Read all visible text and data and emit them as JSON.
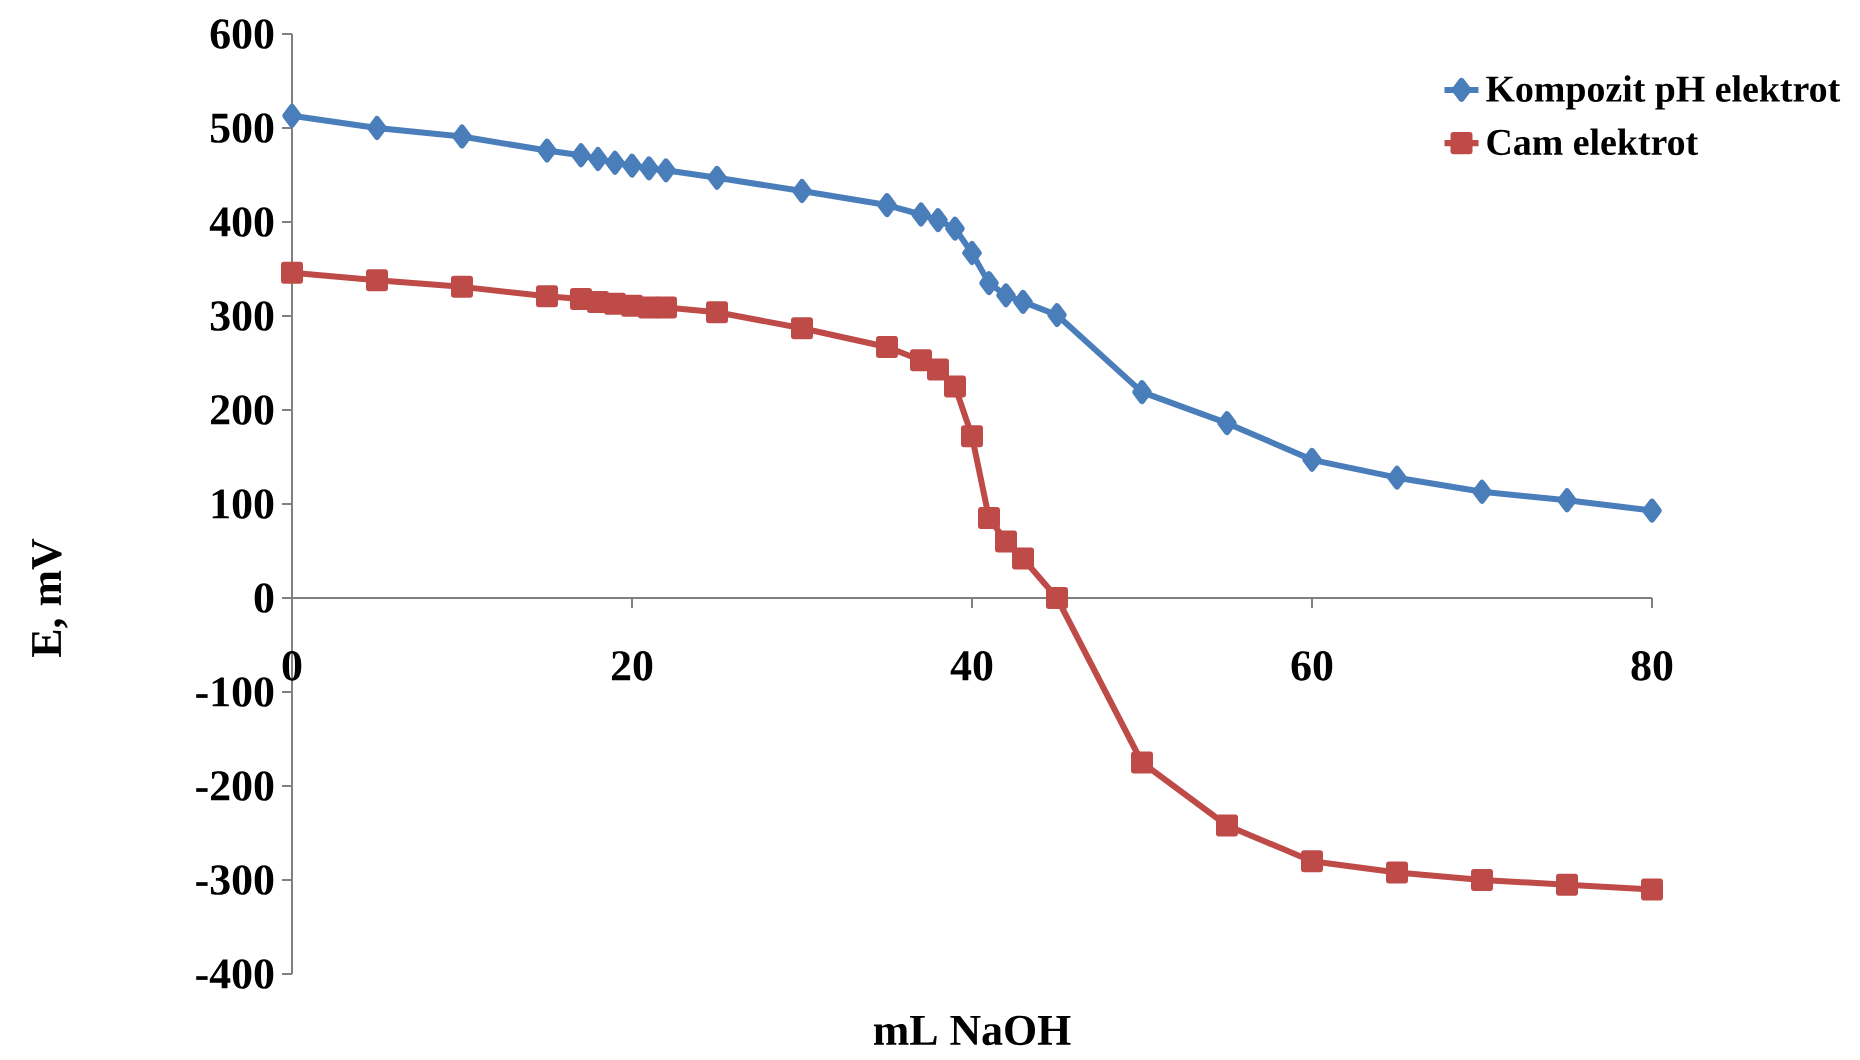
{
  "chart_data": {
    "type": "line",
    "xlabel": "mL NaOH",
    "ylabel": "E, mV",
    "xlim": [
      0,
      80
    ],
    "xticks": [
      0,
      20,
      40,
      60,
      80
    ],
    "ylim": [
      -400,
      600
    ],
    "yticks": [
      -400,
      -300,
      -200,
      -100,
      0,
      100,
      200,
      300,
      400,
      500,
      600
    ],
    "grid": false,
    "legend": "top right",
    "line_style": "solid",
    "series": [
      {
        "name": "Kompozit pH elektrot",
        "color": "#4a7ebb",
        "marker": "diamond",
        "x": [
          0,
          5,
          10,
          15,
          17,
          18,
          19,
          20,
          21,
          22,
          25,
          30,
          35,
          37,
          38,
          39,
          40,
          41,
          42,
          43,
          45,
          50,
          55,
          60,
          65,
          70,
          75,
          80
        ],
        "values": [
          513,
          500,
          491,
          476,
          471,
          467,
          463,
          460,
          457,
          455,
          447,
          433,
          418,
          408,
          402,
          393,
          367,
          335,
          322,
          315,
          301,
          219,
          186,
          147,
          128,
          113,
          104,
          93
        ]
      },
      {
        "name": "Cam elektrot",
        "color": "#be4b48",
        "marker": "square",
        "x": [
          0,
          5,
          10,
          15,
          17,
          18,
          19,
          20,
          21,
          22,
          25,
          30,
          35,
          37,
          38,
          39,
          40,
          41,
          42,
          43,
          45,
          50,
          55,
          60,
          65,
          70,
          75,
          80
        ],
        "values": [
          346,
          338,
          331,
          321,
          318,
          315,
          313,
          311,
          309,
          309,
          304,
          287,
          267,
          253,
          243,
          225,
          172,
          85,
          60,
          42,
          0,
          -175,
          -242,
          -280,
          -292,
          -300,
          -305,
          -310
        ]
      }
    ]
  }
}
